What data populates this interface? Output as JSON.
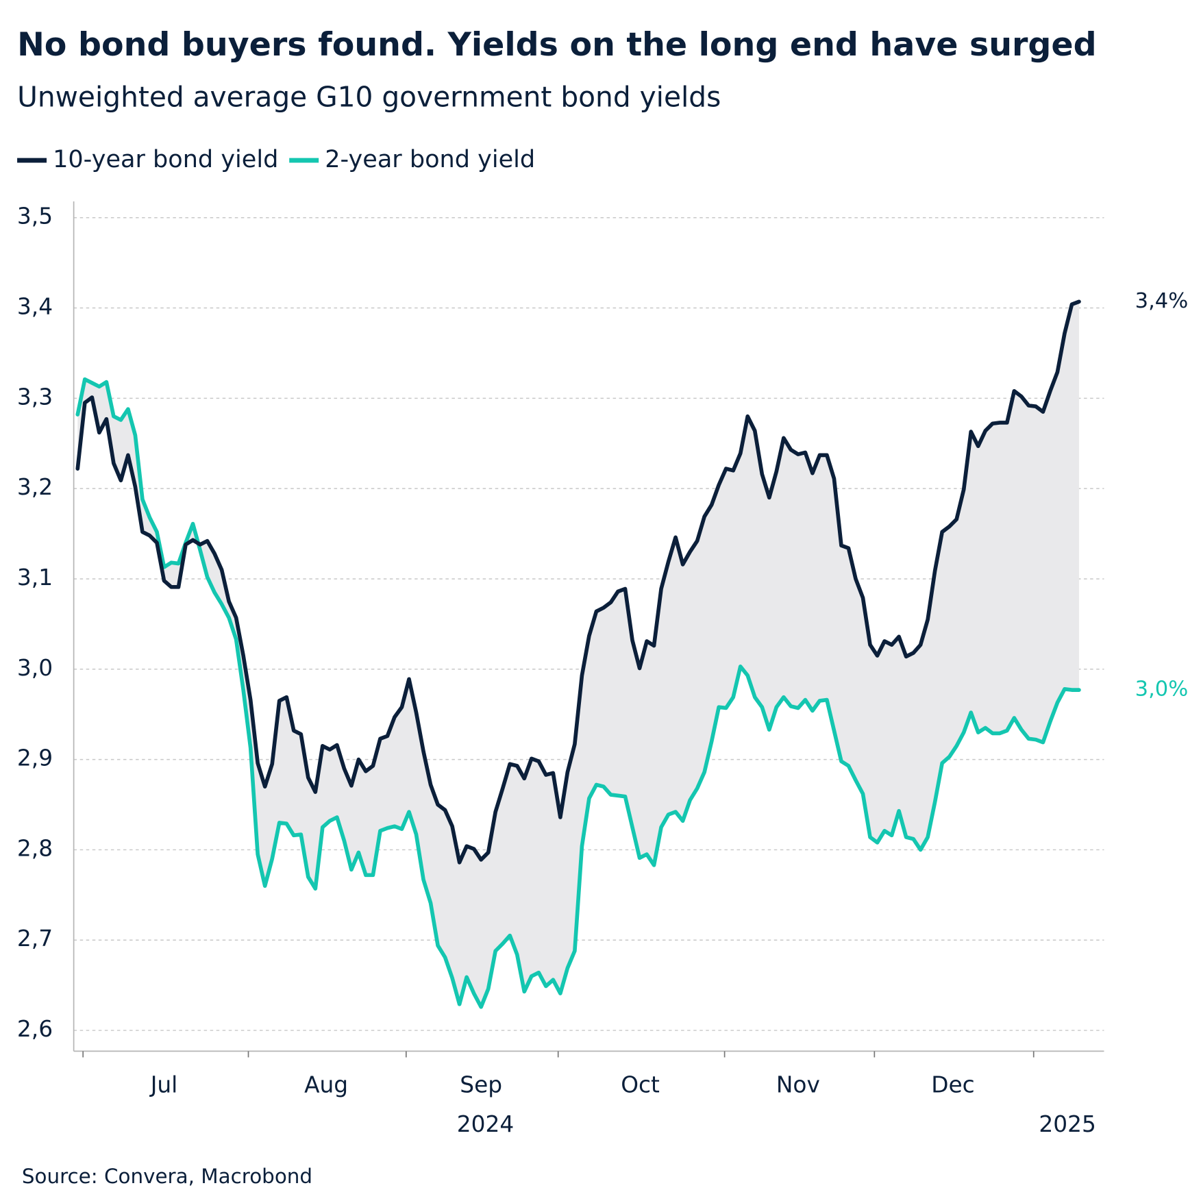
{
  "chart_data": {
    "type": "line",
    "title": "No bond buyers found. Yields on the long end have surged",
    "subtitle": "Unweighted average G10 government bond yields",
    "source": "Source: Convera, Macrobond",
    "categories": [
      null,
      null,
      null,
      null,
      null,
      null,
      null,
      null,
      null,
      null,
      null,
      null,
      null,
      null,
      null,
      null,
      null,
      null,
      null,
      null,
      null,
      null,
      null,
      null,
      null,
      null,
      null,
      null,
      null,
      null,
      null,
      null,
      null,
      null,
      null,
      null,
      null,
      null,
      null,
      null,
      null,
      null,
      null,
      null,
      null,
      null,
      null,
      null,
      null,
      null,
      null,
      null,
      null,
      null,
      null,
      null,
      null,
      null,
      null,
      null,
      null,
      null,
      null,
      null,
      null,
      null,
      null,
      null,
      null,
      null,
      null,
      null,
      null,
      null,
      null,
      null,
      null,
      null,
      null,
      null,
      null,
      null,
      null,
      null,
      null,
      null,
      null,
      null,
      null,
      null,
      null,
      null,
      null,
      null,
      null,
      null,
      null,
      null,
      null,
      null,
      null,
      null,
      null,
      null,
      null,
      null,
      null,
      null,
      null,
      null,
      null,
      null,
      null,
      null,
      null,
      null,
      null,
      null,
      null,
      null,
      null,
      null,
      null,
      null,
      null,
      null,
      null,
      null,
      null,
      null,
      null,
      null,
      null,
      null,
      null,
      null,
      null,
      null,
      null,
      null
    ],
    "series": [
      {
        "name": "10-year bond yield",
        "color": "#0b1f3a",
        "values": [
          3.222,
          3.295,
          3.301,
          3.262,
          3.277,
          3.228,
          3.209,
          3.237,
          3.202,
          3.152,
          3.148,
          3.14,
          3.098,
          3.091,
          3.091,
          3.138,
          3.143,
          3.138,
          3.142,
          3.128,
          3.11,
          3.075,
          3.057,
          3.015,
          2.966,
          2.896,
          2.87,
          2.895,
          2.965,
          2.969,
          2.932,
          2.928,
          2.88,
          2.864,
          2.915,
          2.911,
          2.916,
          2.89,
          2.871,
          2.9,
          2.887,
          2.893,
          2.923,
          2.926,
          2.947,
          2.958,
          2.989,
          2.952,
          2.909,
          2.872,
          2.85,
          2.844,
          2.826,
          2.786,
          2.804,
          2.801,
          2.789,
          2.797,
          2.842,
          2.868,
          2.895,
          2.893,
          2.879,
          2.901,
          2.898,
          2.883,
          2.885,
          2.836,
          2.886,
          2.917,
          2.993,
          3.037,
          3.064,
          3.068,
          3.074,
          3.086,
          3.089,
          3.032,
          3.001,
          3.031,
          3.026,
          3.089,
          3.119,
          3.146,
          3.116,
          3.13,
          3.142,
          3.169,
          3.182,
          3.204,
          3.222,
          3.22,
          3.239,
          3.28,
          3.264,
          3.216,
          3.19,
          3.219,
          3.256,
          3.243,
          3.238,
          3.24,
          3.217,
          3.237,
          3.237,
          3.211,
          3.137,
          3.134,
          3.1,
          3.079,
          3.027,
          3.015,
          3.031,
          3.027,
          3.036,
          3.014,
          3.018,
          3.027,
          3.055,
          3.109,
          3.152,
          3.158,
          3.166,
          3.199,
          3.263,
          3.247,
          3.264,
          3.272,
          3.273,
          3.273,
          3.308,
          3.302,
          3.292,
          3.291,
          3.285,
          3.308,
          3.329,
          3.372,
          3.404,
          3.407
        ],
        "value_labels": [
          null,
          null,
          null,
          null,
          null,
          null,
          null,
          null,
          null,
          null,
          null,
          null,
          null,
          null,
          null,
          null,
          null,
          null,
          null,
          null,
          null,
          null,
          null,
          null,
          null,
          null,
          null,
          null,
          null,
          null,
          null,
          null,
          null,
          null,
          null,
          null,
          null,
          null,
          null,
          null,
          null,
          null,
          null,
          null,
          null,
          null,
          null,
          null,
          null,
          null,
          null,
          null,
          null,
          null,
          null,
          null,
          null,
          null,
          null,
          null,
          null,
          null,
          null,
          null,
          null,
          null,
          null,
          null,
          null,
          null,
          null,
          null,
          null,
          null,
          null,
          null,
          null,
          null,
          null,
          null,
          null,
          null,
          null,
          null,
          null,
          null,
          null,
          null,
          null,
          null,
          null,
          null,
          null,
          null,
          null,
          null,
          null,
          null,
          null,
          null,
          null,
          null,
          null,
          null,
          null,
          null,
          null,
          null,
          null,
          null,
          null,
          null,
          null,
          null,
          null,
          null,
          null,
          null,
          null,
          null,
          null,
          null,
          null,
          null,
          null,
          null,
          null,
          null,
          null,
          null,
          null,
          null,
          null,
          null,
          null,
          null,
          null,
          null,
          null,
          "3,4%"
        ]
      },
      {
        "name": "2-year bond yield",
        "color": "#14c6b0",
        "values": [
          3.282,
          3.321,
          3.317,
          3.313,
          3.318,
          3.28,
          3.276,
          3.288,
          3.259,
          3.188,
          3.168,
          3.152,
          3.113,
          3.118,
          3.117,
          3.14,
          3.161,
          3.132,
          3.102,
          3.085,
          3.072,
          3.057,
          3.033,
          2.977,
          2.913,
          2.795,
          2.76,
          2.79,
          2.83,
          2.829,
          2.816,
          2.817,
          2.77,
          2.757,
          2.825,
          2.832,
          2.836,
          2.81,
          2.778,
          2.797,
          2.772,
          2.772,
          2.821,
          2.824,
          2.826,
          2.823,
          2.842,
          2.817,
          2.767,
          2.741,
          2.694,
          2.681,
          2.658,
          2.629,
          2.659,
          2.641,
          2.626,
          2.646,
          2.688,
          2.696,
          2.705,
          2.684,
          2.643,
          2.66,
          2.664,
          2.649,
          2.656,
          2.641,
          2.669,
          2.688,
          2.804,
          2.857,
          2.872,
          2.87,
          2.861,
          2.86,
          2.859,
          2.825,
          2.791,
          2.795,
          2.783,
          2.825,
          2.839,
          2.842,
          2.832,
          2.855,
          2.868,
          2.886,
          2.92,
          2.958,
          2.957,
          2.969,
          3.003,
          2.993,
          2.969,
          2.958,
          2.933,
          2.958,
          2.969,
          2.959,
          2.957,
          2.966,
          2.954,
          2.965,
          2.966,
          2.932,
          2.898,
          2.893,
          2.877,
          2.862,
          2.814,
          2.808,
          2.821,
          2.816,
          2.843,
          2.814,
          2.812,
          2.8,
          2.814,
          2.853,
          2.896,
          2.903,
          2.915,
          2.93,
          2.952,
          2.93,
          2.935,
          2.929,
          2.929,
          2.932,
          2.946,
          2.933,
          2.923,
          2.922,
          2.919,
          2.942,
          2.963,
          2.978,
          2.977,
          2.977
        ],
        "value_labels": [
          null,
          null,
          null,
          null,
          null,
          null,
          null,
          null,
          null,
          null,
          null,
          null,
          null,
          null,
          null,
          null,
          null,
          null,
          null,
          null,
          null,
          null,
          null,
          null,
          null,
          null,
          null,
          null,
          null,
          null,
          null,
          null,
          null,
          null,
          null,
          null,
          null,
          null,
          null,
          null,
          null,
          null,
          null,
          null,
          null,
          null,
          null,
          null,
          null,
          null,
          null,
          null,
          null,
          null,
          null,
          null,
          null,
          null,
          null,
          null,
          null,
          null,
          null,
          null,
          null,
          null,
          null,
          null,
          null,
          null,
          null,
          null,
          null,
          null,
          null,
          null,
          null,
          null,
          null,
          null,
          null,
          null,
          null,
          null,
          null,
          null,
          null,
          null,
          null,
          null,
          null,
          null,
          null,
          null,
          null,
          null,
          null,
          null,
          null,
          null,
          null,
          null,
          null,
          null,
          null,
          null,
          null,
          null,
          null,
          null,
          null,
          null,
          null,
          null,
          null,
          null,
          null,
          null,
          null,
          null,
          null,
          null,
          null,
          null,
          null,
          null,
          null,
          null,
          null,
          null,
          null,
          null,
          null,
          null,
          null,
          null,
          null,
          null,
          null,
          "3,0%"
        ]
      }
    ],
    "fill_between": true,
    "fill_color": "#e9e9eb",
    "xlim": [
      -0.54,
      142.47
    ],
    "xticks": [
      {
        "value": 12.0,
        "label": "Jul"
      },
      {
        "value": 34.5,
        "label": "Aug"
      },
      {
        "value": 56.0,
        "label": "Sep"
      },
      {
        "value": 78.1,
        "label": "Oct"
      },
      {
        "value": 100.0,
        "label": "Nov"
      },
      {
        "value": 121.5,
        "label": "Dec"
      }
    ],
    "x_year_ticks": [
      {
        "value": 56.6,
        "label": "2024"
      },
      {
        "value": 137.4,
        "label": "2025"
      }
    ],
    "xminorticks": [
      0.75,
      23.7,
      45.6,
      66.7,
      89.8,
      110.6,
      132.7
    ],
    "ylim": [
      2.577,
      3.518
    ],
    "yticks": [
      {
        "value": 2.6,
        "label": "2,6"
      },
      {
        "value": 2.7,
        "label": "2,7"
      },
      {
        "value": 2.8,
        "label": "2,8"
      },
      {
        "value": 2.9,
        "label": "2,9"
      },
      {
        "value": 3.0,
        "label": "3,0"
      },
      {
        "value": 3.1,
        "label": "3,1"
      },
      {
        "value": 3.2,
        "label": "3,2"
      },
      {
        "value": 3.3,
        "label": "3,3"
      },
      {
        "value": 3.4,
        "label": "3,4"
      },
      {
        "value": 3.5,
        "label": "3,5"
      }
    ],
    "grid": true
  }
}
